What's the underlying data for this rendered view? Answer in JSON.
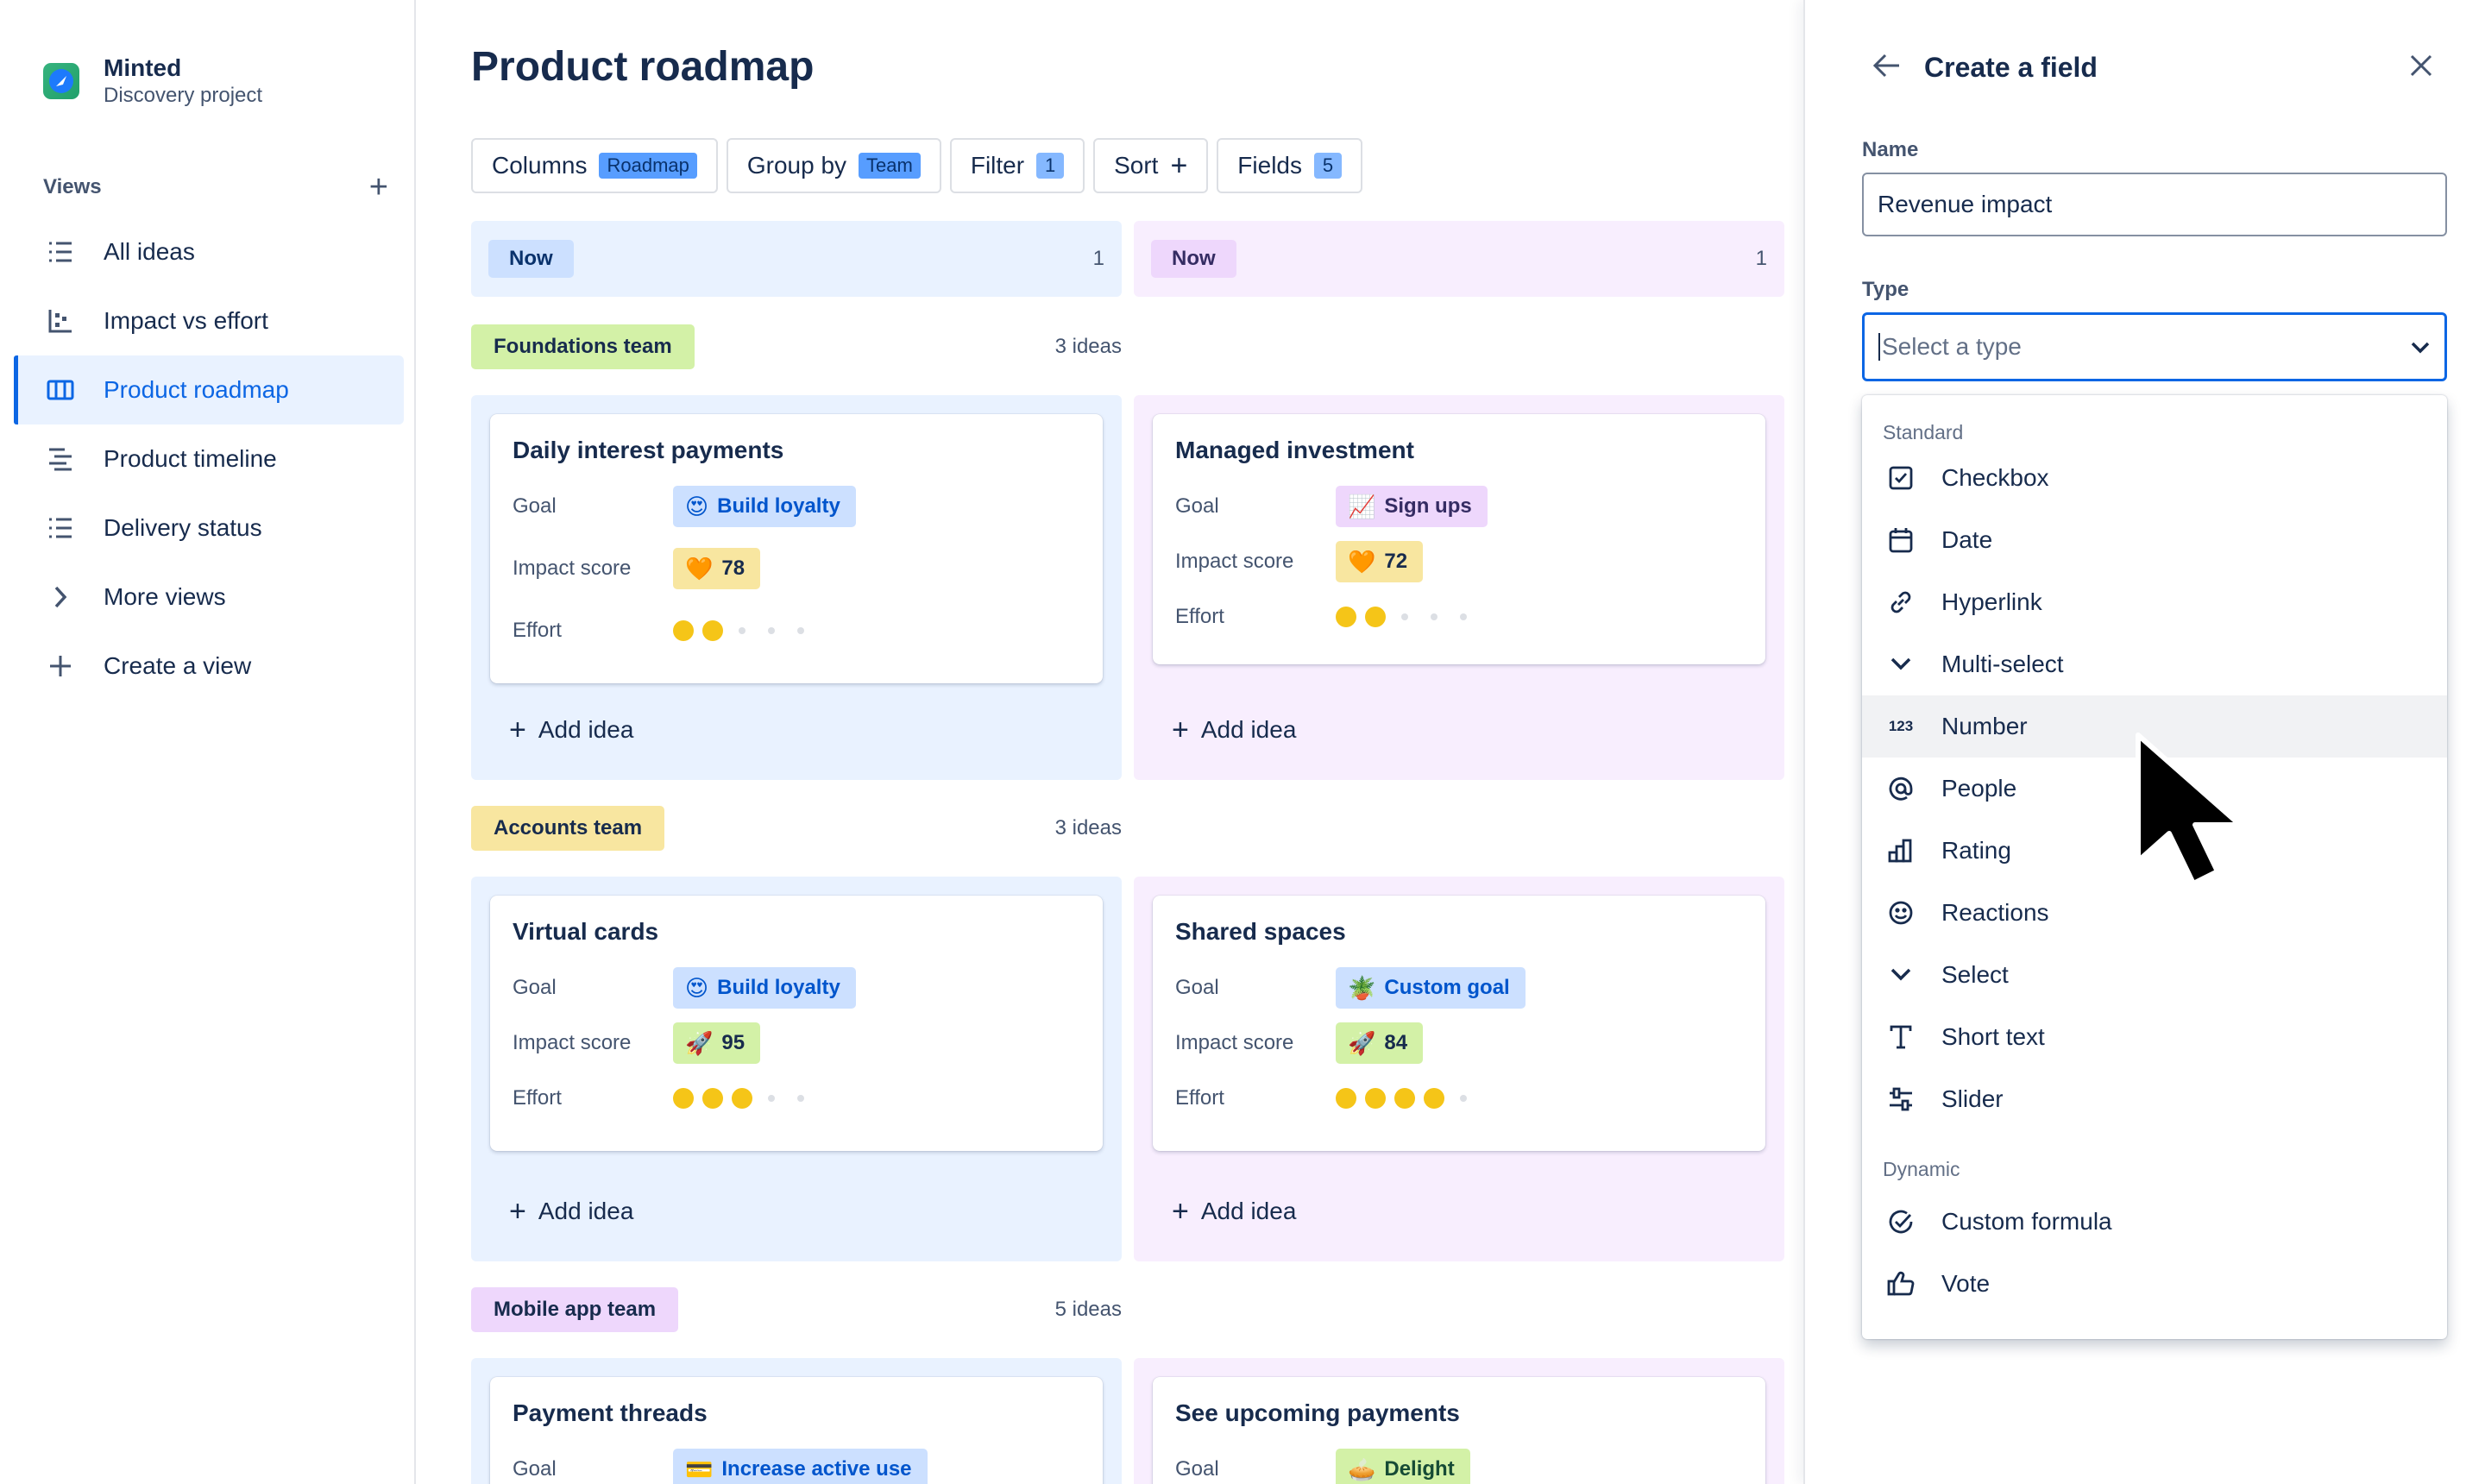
{
  "sidebar": {
    "project_name": "Minted",
    "project_subtitle": "Discovery project",
    "views_label": "Views",
    "views_add": "+",
    "items": [
      {
        "label": "All ideas",
        "icon": "list-icon"
      },
      {
        "label": "Impact vs effort",
        "icon": "matrix-chart-icon"
      },
      {
        "label": "Product roadmap",
        "icon": "board-columns-icon",
        "active": true
      },
      {
        "label": "Product timeline",
        "icon": "timeline-icon"
      },
      {
        "label": "Delivery status",
        "icon": "list-icon"
      },
      {
        "label": "More views",
        "icon": "chevron-right-icon"
      },
      {
        "label": "Create a view",
        "icon": "plus-icon"
      }
    ]
  },
  "main": {
    "title": "Product roadmap",
    "toolbar": {
      "columns_label": "Columns",
      "columns_badge": "Roadmap",
      "group_label": "Group by",
      "group_badge": "Team",
      "filter_label": "Filter",
      "filter_badge": "1",
      "sort_label": "Sort",
      "sort_plus": "+",
      "fields_label": "Fields",
      "fields_badge": "5"
    },
    "columns": [
      {
        "label": "Now",
        "count": "1",
        "bg": "#E9F2FF",
        "pill_bg": "#CCE0FF",
        "pill_color": "#09326C"
      },
      {
        "label": "Now",
        "count": "1",
        "bg": "#F8EEFE",
        "pill_bg": "#EED7FC",
        "pill_color": "#352C63"
      }
    ],
    "add_idea_label": "Add idea",
    "groups": [
      {
        "label": "Foundations team",
        "count": "3 ideas",
        "color": "#D3F1A7",
        "cards": [
          {
            "title": "Daily interest payments",
            "goal_label": "Goal",
            "goal": "Build loyalty",
            "goal_emoji": "😍",
            "goal_bg": "#CCE0FF",
            "goal_color": "#0055CC",
            "impact_label": "Impact score",
            "impact": "78",
            "impact_emoji": "🧡",
            "impact_bg": "#F8E6A0",
            "effort_label": "Effort",
            "effort": 2,
            "effort_max": 5
          },
          {
            "title": "Managed investment",
            "goal_label": "Goal",
            "goal": "Sign ups",
            "goal_emoji": "📈",
            "goal_bg": "#EED7FC",
            "goal_color": "#352C63",
            "impact_label": "Impact score",
            "impact": "72",
            "impact_emoji": "🧡",
            "impact_bg": "#F8E6A0",
            "effort_label": "Effort",
            "effort": 2,
            "effort_max": 5
          }
        ]
      },
      {
        "label": "Accounts team",
        "count": "3 ideas",
        "color": "#F8E6A0",
        "cards": [
          {
            "title": "Virtual cards",
            "goal_label": "Goal",
            "goal": "Build loyalty",
            "goal_emoji": "😍",
            "goal_bg": "#CCE0FF",
            "goal_color": "#0055CC",
            "impact_label": "Impact score",
            "impact": "95",
            "impact_emoji": "🚀",
            "impact_bg": "#D3F1A7",
            "effort_label": "Effort",
            "effort": 3,
            "effort_max": 5
          },
          {
            "title": "Shared spaces",
            "goal_label": "Goal",
            "goal": "Custom goal",
            "goal_emoji": "🪴",
            "goal_bg": "#CCE0FF",
            "goal_color": "#0055CC",
            "impact_label": "Impact score",
            "impact": "84",
            "impact_emoji": "🚀",
            "impact_bg": "#D3F1A7",
            "effort_label": "Effort",
            "effort": 4,
            "effort_max": 5
          }
        ]
      },
      {
        "label": "Mobile app team",
        "count": "5 ideas",
        "color": "#EED7FC",
        "cards": [
          {
            "title": "Payment threads",
            "goal_label": "Goal",
            "goal": "Increase active use",
            "goal_emoji": "💳",
            "goal_bg": "#CCE0FF",
            "goal_color": "#0055CC"
          },
          {
            "title": "See upcoming payments",
            "goal_label": "Goal",
            "goal": "Delight",
            "goal_emoji": "🥧",
            "goal_bg": "#D3F1A7",
            "goal_color": "#164B35"
          }
        ]
      }
    ]
  },
  "panel": {
    "title": "Create a field",
    "name_label": "Name",
    "name_value": "Revenue impact",
    "type_label": "Type",
    "type_placeholder": "Select a type",
    "standard_label": "Standard",
    "standard_items": [
      {
        "label": "Checkbox",
        "icon": "checkbox-icon"
      },
      {
        "label": "Date",
        "icon": "calendar-icon"
      },
      {
        "label": "Hyperlink",
        "icon": "link-icon"
      },
      {
        "label": "Multi-select",
        "icon": "chevron-down-icon"
      },
      {
        "label": "Number",
        "icon": "number-icon",
        "icon_text": "123",
        "hover": true
      },
      {
        "label": "People",
        "icon": "at-sign-icon"
      },
      {
        "label": "Rating",
        "icon": "rating-bars-icon"
      },
      {
        "label": "Reactions",
        "icon": "emoji-icon"
      },
      {
        "label": "Select",
        "icon": "chevron-down-icon"
      },
      {
        "label": "Short text",
        "icon": "text-icon"
      },
      {
        "label": "Slider",
        "icon": "slider-icon"
      }
    ],
    "dynamic_label": "Dynamic",
    "dynamic_items": [
      {
        "label": "Custom formula",
        "icon": "formula-icon"
      },
      {
        "label": "Vote",
        "icon": "thumbs-up-icon"
      }
    ]
  }
}
